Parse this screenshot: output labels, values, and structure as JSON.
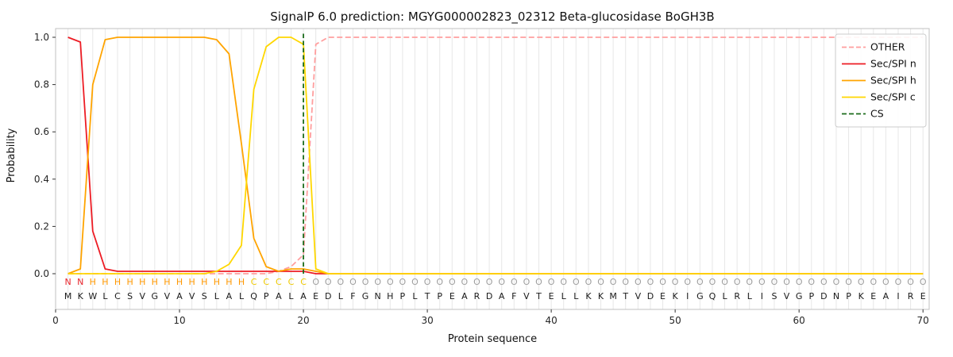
{
  "chart_data": {
    "type": "line",
    "title": "SignalP 6.0 prediction: MGYG000002823_02312 Beta-glucosidase BoGH3B",
    "xlabel": "Protein sequence",
    "ylabel": "Probability",
    "xlim": [
      0,
      70.5
    ],
    "ylim": [
      0,
      1.05
    ],
    "x_ticks": [
      0,
      10,
      20,
      30,
      40,
      50,
      60,
      70
    ],
    "y_ticks": [
      0,
      0.2,
      0.4,
      0.6,
      0.8,
      1.0
    ],
    "grid": "vertical-per-residue",
    "legend_position": "upper right",
    "sequence": "MKWLCSVGVAVSLALQPALAEDLFGNHPLTPEARDAFVTELLKKMTVDEKIGQLRLISVGPDNPKEAIRE",
    "region_labels": "NNHHHHHHHHHHHHHCCCCCOOOOOOOOOOOOOOOOOOOOOOOOOOOOOOOOOOOOOOOOOOOOOOOOOO",
    "region_colors": {
      "N": "#e8262d",
      "H": "#ff9800",
      "C": "#eec900",
      "O": "#9e9e9e"
    },
    "series": [
      {
        "name": "OTHER",
        "color": "#ff9e9e",
        "style": "dashed",
        "values": [
          0,
          0,
          0,
          0,
          0,
          0,
          0,
          0,
          0,
          0,
          0,
          0,
          0,
          0,
          0,
          0,
          0,
          0.01,
          0.03,
          0.08,
          0.97,
          1,
          1,
          1,
          1,
          1,
          1,
          1,
          1,
          1,
          1,
          1,
          1,
          1,
          1,
          1,
          1,
          1,
          1,
          1,
          1,
          1,
          1,
          1,
          1,
          1,
          1,
          1,
          1,
          1,
          1,
          1,
          1,
          1,
          1,
          1,
          1,
          1,
          1,
          1,
          1,
          1,
          1,
          1,
          1,
          1,
          1,
          1,
          1,
          1
        ]
      },
      {
        "name": "Sec/SPI n",
        "color": "#ed1c24",
        "style": "solid",
        "values": [
          1,
          0.98,
          0.18,
          0.02,
          0.01,
          0.01,
          0.01,
          0.01,
          0.01,
          0.01,
          0.01,
          0.01,
          0.01,
          0.01,
          0.01,
          0.01,
          0.01,
          0.01,
          0.01,
          0.01,
          0,
          0,
          0,
          0,
          0,
          0,
          0,
          0,
          0,
          0,
          0,
          0,
          0,
          0,
          0,
          0,
          0,
          0,
          0,
          0,
          0,
          0,
          0,
          0,
          0,
          0,
          0,
          0,
          0,
          0,
          0,
          0,
          0,
          0,
          0,
          0,
          0,
          0,
          0,
          0,
          0,
          0,
          0,
          0,
          0,
          0,
          0,
          0,
          0,
          0
        ]
      },
      {
        "name": "Sec/SPI h",
        "color": "#ffa400",
        "style": "solid",
        "values": [
          0,
          0.02,
          0.8,
          0.99,
          1,
          1,
          1,
          1,
          1,
          1,
          1,
          1,
          0.99,
          0.93,
          0.55,
          0.15,
          0.03,
          0.01,
          0.02,
          0.02,
          0.01,
          0,
          0,
          0,
          0,
          0,
          0,
          0,
          0,
          0,
          0,
          0,
          0,
          0,
          0,
          0,
          0,
          0,
          0,
          0,
          0,
          0,
          0,
          0,
          0,
          0,
          0,
          0,
          0,
          0,
          0,
          0,
          0,
          0,
          0,
          0,
          0,
          0,
          0,
          0,
          0,
          0,
          0,
          0,
          0,
          0,
          0,
          0,
          0,
          0
        ]
      },
      {
        "name": "Sec/SPI c",
        "color": "#ffd700",
        "style": "solid",
        "values": [
          0,
          0,
          0,
          0,
          0,
          0,
          0,
          0,
          0,
          0,
          0,
          0,
          0.01,
          0.04,
          0.12,
          0.78,
          0.96,
          1,
          1,
          0.97,
          0.02,
          0,
          0,
          0,
          0,
          0,
          0,
          0,
          0,
          0,
          0,
          0,
          0,
          0,
          0,
          0,
          0,
          0,
          0,
          0,
          0,
          0,
          0,
          0,
          0,
          0,
          0,
          0,
          0,
          0,
          0,
          0,
          0,
          0,
          0,
          0,
          0,
          0,
          0,
          0,
          0,
          0,
          0,
          0,
          0,
          0,
          0,
          0,
          0,
          0
        ]
      }
    ],
    "cs": {
      "label": "CS",
      "position": 20,
      "color": "#1b6b1b",
      "style": "dashed"
    }
  }
}
